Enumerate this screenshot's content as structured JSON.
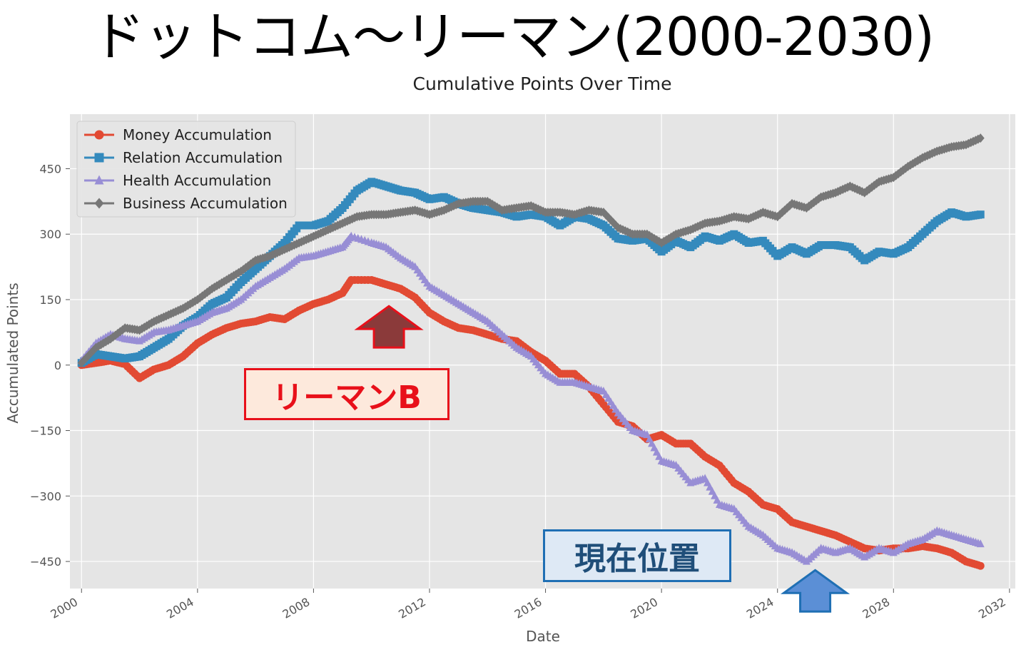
{
  "headline": "ドットコム～リーマン(2000-2030)",
  "annotations": {
    "lehman_label": "リーマンB",
    "current_label": "現在位置",
    "lehman_color": "#e8101a",
    "lehman_fill": "#8b3a3a",
    "current_color": "#1f6fb4",
    "current_fill": "#5b8fd6",
    "lehman_arrow_date": 2010.6,
    "lehman_arrow_level": 135,
    "current_arrow_date": 2025.3,
    "current_arrow_level": -470
  },
  "chart_data": {
    "type": "line",
    "title": "Cumulative Points Over Time",
    "xlabel": "Date",
    "ylabel": "Accumulated Points",
    "xlim": [
      1999.6,
      2032.2
    ],
    "ylim": [
      -512,
      575
    ],
    "xticks": [
      "2000",
      "2004",
      "2008",
      "2012",
      "2016",
      "2020",
      "2024",
      "2028",
      "2032"
    ],
    "yticks": [
      -450,
      -300,
      -150,
      0,
      150,
      300,
      450
    ],
    "grid": true,
    "legend_position": "top-left",
    "background": "#e5e5e5",
    "series": [
      {
        "name": "Money Accumulation",
        "color": "#e24a33",
        "marker": "circle",
        "points": [
          [
            2000,
            0
          ],
          [
            2000.5,
            5
          ],
          [
            2001,
            10
          ],
          [
            2001.5,
            2
          ],
          [
            2002,
            -30
          ],
          [
            2002.5,
            -10
          ],
          [
            2003,
            0
          ],
          [
            2003.5,
            20
          ],
          [
            2004,
            50
          ],
          [
            2004.5,
            70
          ],
          [
            2005,
            85
          ],
          [
            2005.5,
            95
          ],
          [
            2006,
            100
          ],
          [
            2006.5,
            110
          ],
          [
            2007,
            105
          ],
          [
            2007.5,
            125
          ],
          [
            2008,
            140
          ],
          [
            2008.5,
            150
          ],
          [
            2009,
            165
          ],
          [
            2009.3,
            195
          ],
          [
            2010,
            195
          ],
          [
            2010.5,
            185
          ],
          [
            2011,
            175
          ],
          [
            2011.5,
            155
          ],
          [
            2012,
            120
          ],
          [
            2012.5,
            100
          ],
          [
            2013,
            85
          ],
          [
            2013.5,
            80
          ],
          [
            2014,
            70
          ],
          [
            2014.5,
            60
          ],
          [
            2015,
            55
          ],
          [
            2015.5,
            30
          ],
          [
            2016,
            10
          ],
          [
            2016.5,
            -20
          ],
          [
            2017,
            -20
          ],
          [
            2017.5,
            -50
          ],
          [
            2018,
            -90
          ],
          [
            2018.5,
            -130
          ],
          [
            2019,
            -140
          ],
          [
            2019.5,
            -170
          ],
          [
            2020,
            -160
          ],
          [
            2020.5,
            -180
          ],
          [
            2021,
            -180
          ],
          [
            2021.5,
            -210
          ],
          [
            2022,
            -230
          ],
          [
            2022.5,
            -270
          ],
          [
            2023,
            -290
          ],
          [
            2023.5,
            -320
          ],
          [
            2024,
            -330
          ],
          [
            2024.5,
            -360
          ],
          [
            2025,
            -370
          ],
          [
            2025.5,
            -380
          ],
          [
            2026,
            -390
          ],
          [
            2026.5,
            -405
          ],
          [
            2027,
            -420
          ],
          [
            2027.5,
            -425
          ],
          [
            2028,
            -420
          ],
          [
            2028.5,
            -420
          ],
          [
            2029,
            -415
          ],
          [
            2029.5,
            -420
          ],
          [
            2030,
            -430
          ],
          [
            2030.5,
            -450
          ],
          [
            2031,
            -460
          ]
        ]
      },
      {
        "name": "Relation Accumulation",
        "color": "#348abd",
        "marker": "square",
        "points": [
          [
            2000,
            5
          ],
          [
            2000.5,
            25
          ],
          [
            2001,
            20
          ],
          [
            2001.5,
            15
          ],
          [
            2002,
            20
          ],
          [
            2002.5,
            40
          ],
          [
            2003,
            60
          ],
          [
            2003.5,
            90
          ],
          [
            2004,
            110
          ],
          [
            2004.5,
            140
          ],
          [
            2005,
            155
          ],
          [
            2005.5,
            190
          ],
          [
            2006,
            220
          ],
          [
            2006.5,
            250
          ],
          [
            2007,
            280
          ],
          [
            2007.5,
            320
          ],
          [
            2008,
            320
          ],
          [
            2008.5,
            330
          ],
          [
            2009,
            360
          ],
          [
            2009.5,
            400
          ],
          [
            2010,
            420
          ],
          [
            2010.5,
            410
          ],
          [
            2011,
            400
          ],
          [
            2011.5,
            395
          ],
          [
            2012,
            380
          ],
          [
            2012.5,
            385
          ],
          [
            2013,
            370
          ],
          [
            2013.5,
            360
          ],
          [
            2014,
            355
          ],
          [
            2014.5,
            350
          ],
          [
            2015,
            340
          ],
          [
            2015.5,
            345
          ],
          [
            2016,
            340
          ],
          [
            2016.5,
            320
          ],
          [
            2017,
            340
          ],
          [
            2017.5,
            335
          ],
          [
            2018,
            320
          ],
          [
            2018.5,
            290
          ],
          [
            2019,
            285
          ],
          [
            2019.5,
            290
          ],
          [
            2020,
            260
          ],
          [
            2020.5,
            285
          ],
          [
            2021,
            270
          ],
          [
            2021.5,
            295
          ],
          [
            2022,
            285
          ],
          [
            2022.5,
            300
          ],
          [
            2023,
            280
          ],
          [
            2023.5,
            285
          ],
          [
            2024,
            250
          ],
          [
            2024.5,
            270
          ],
          [
            2025,
            255
          ],
          [
            2025.5,
            275
          ],
          [
            2026,
            275
          ],
          [
            2026.5,
            270
          ],
          [
            2027,
            240
          ],
          [
            2027.5,
            260
          ],
          [
            2028,
            255
          ],
          [
            2028.5,
            270
          ],
          [
            2029,
            300
          ],
          [
            2029.5,
            330
          ],
          [
            2030,
            350
          ],
          [
            2030.5,
            340
          ],
          [
            2031,
            345
          ]
        ]
      },
      {
        "name": "Health Accumulation",
        "color": "#988ed5",
        "marker": "triangle",
        "points": [
          [
            2000,
            10
          ],
          [
            2000.5,
            50
          ],
          [
            2001,
            70
          ],
          [
            2001.5,
            60
          ],
          [
            2002,
            55
          ],
          [
            2002.5,
            75
          ],
          [
            2003,
            80
          ],
          [
            2003.5,
            90
          ],
          [
            2004,
            100
          ],
          [
            2004.5,
            120
          ],
          [
            2005,
            130
          ],
          [
            2005.5,
            150
          ],
          [
            2006,
            180
          ],
          [
            2006.5,
            200
          ],
          [
            2007,
            220
          ],
          [
            2007.5,
            245
          ],
          [
            2008,
            250
          ],
          [
            2008.5,
            260
          ],
          [
            2009,
            270
          ],
          [
            2009.3,
            295
          ],
          [
            2010,
            280
          ],
          [
            2010.5,
            270
          ],
          [
            2011,
            245
          ],
          [
            2011.5,
            225
          ],
          [
            2012,
            180
          ],
          [
            2012.5,
            160
          ],
          [
            2013,
            140
          ],
          [
            2013.5,
            120
          ],
          [
            2014,
            100
          ],
          [
            2014.5,
            70
          ],
          [
            2015,
            40
          ],
          [
            2015.5,
            20
          ],
          [
            2016,
            -20
          ],
          [
            2016.5,
            -40
          ],
          [
            2017,
            -40
          ],
          [
            2017.5,
            -50
          ],
          [
            2018,
            -60
          ],
          [
            2018.5,
            -110
          ],
          [
            2019,
            -150
          ],
          [
            2019.5,
            -160
          ],
          [
            2020,
            -220
          ],
          [
            2020.5,
            -230
          ],
          [
            2021,
            -270
          ],
          [
            2021.5,
            -260
          ],
          [
            2022,
            -320
          ],
          [
            2022.5,
            -330
          ],
          [
            2023,
            -370
          ],
          [
            2023.5,
            -390
          ],
          [
            2024,
            -420
          ],
          [
            2024.5,
            -430
          ],
          [
            2025,
            -450
          ],
          [
            2025.5,
            -420
          ],
          [
            2026,
            -430
          ],
          [
            2026.5,
            -420
          ],
          [
            2027,
            -440
          ],
          [
            2027.5,
            -420
          ],
          [
            2028,
            -430
          ],
          [
            2028.5,
            -410
          ],
          [
            2029,
            -400
          ],
          [
            2029.5,
            -380
          ],
          [
            2030,
            -390
          ],
          [
            2030.5,
            -400
          ],
          [
            2031,
            -410
          ]
        ]
      },
      {
        "name": "Business Accumulation",
        "color": "#777777",
        "marker": "diamond",
        "points": [
          [
            2000,
            5
          ],
          [
            2000.5,
            40
          ],
          [
            2001,
            60
          ],
          [
            2001.5,
            85
          ],
          [
            2002,
            80
          ],
          [
            2002.5,
            100
          ],
          [
            2003,
            115
          ],
          [
            2003.5,
            130
          ],
          [
            2004,
            150
          ],
          [
            2004.5,
            175
          ],
          [
            2005,
            195
          ],
          [
            2005.5,
            215
          ],
          [
            2006,
            240
          ],
          [
            2006.5,
            250
          ],
          [
            2007,
            265
          ],
          [
            2007.5,
            280
          ],
          [
            2008,
            295
          ],
          [
            2008.5,
            310
          ],
          [
            2009,
            325
          ],
          [
            2009.5,
            340
          ],
          [
            2010,
            345
          ],
          [
            2010.5,
            345
          ],
          [
            2011,
            350
          ],
          [
            2011.5,
            355
          ],
          [
            2012,
            345
          ],
          [
            2012.5,
            355
          ],
          [
            2013,
            370
          ],
          [
            2013.5,
            375
          ],
          [
            2014,
            375
          ],
          [
            2014.5,
            355
          ],
          [
            2015,
            360
          ],
          [
            2015.5,
            365
          ],
          [
            2016,
            350
          ],
          [
            2016.5,
            350
          ],
          [
            2017,
            345
          ],
          [
            2017.5,
            355
          ],
          [
            2018,
            350
          ],
          [
            2018.5,
            315
          ],
          [
            2019,
            300
          ],
          [
            2019.5,
            300
          ],
          [
            2020,
            280
          ],
          [
            2020.5,
            300
          ],
          [
            2021,
            310
          ],
          [
            2021.5,
            325
          ],
          [
            2022,
            330
          ],
          [
            2022.5,
            340
          ],
          [
            2023,
            335
          ],
          [
            2023.5,
            350
          ],
          [
            2024,
            340
          ],
          [
            2024.5,
            370
          ],
          [
            2025,
            360
          ],
          [
            2025.5,
            385
          ],
          [
            2026,
            395
          ],
          [
            2026.5,
            410
          ],
          [
            2027,
            395
          ],
          [
            2027.5,
            420
          ],
          [
            2028,
            430
          ],
          [
            2028.5,
            455
          ],
          [
            2029,
            475
          ],
          [
            2029.5,
            490
          ],
          [
            2030,
            500
          ],
          [
            2030.5,
            505
          ],
          [
            2031,
            520
          ]
        ]
      }
    ]
  }
}
